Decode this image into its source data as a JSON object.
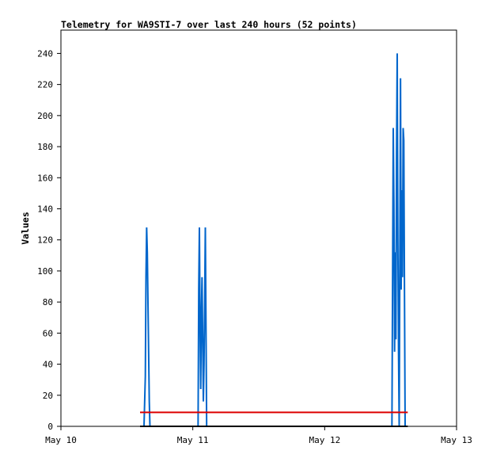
{
  "chart_data": {
    "type": "line",
    "title": "Telemetry for WA9STI-7 over last 240 hours (52 points)",
    "xlabel": "",
    "ylabel": "Values",
    "x_tick_labels": [
      "May 10",
      "May 11",
      "May 12",
      "May 13"
    ],
    "xlim_days": [
      10,
      13
    ],
    "ylim": [
      0,
      255
    ],
    "y_ticks": [
      0,
      20,
      40,
      60,
      80,
      100,
      120,
      140,
      160,
      180,
      200,
      220,
      240
    ],
    "grid": false,
    "legend": "none",
    "series": [
      {
        "color": "#0066cc",
        "x_days": [
          10.63,
          10.64,
          10.645,
          10.65,
          10.655,
          10.66,
          10.665,
          10.67,
          10.675,
          10.68,
          10.685,
          10.69,
          11.04,
          11.045,
          11.05,
          11.055,
          11.06,
          11.065,
          11.07,
          11.075,
          11.08,
          11.085,
          11.09,
          11.095,
          11.1,
          11.105,
          11.11,
          11.115,
          11.12,
          12.51,
          12.515,
          12.52,
          12.525,
          12.53,
          12.535,
          12.54,
          12.545,
          12.55,
          12.555,
          12.56,
          12.565,
          12.57,
          12.575,
          12.58,
          12.585,
          12.59,
          12.595,
          12.6,
          12.605,
          12.61,
          12.615,
          12.62
        ],
        "y": [
          0,
          32,
          96,
          128,
          112,
          80,
          48,
          16,
          0,
          0,
          0,
          0,
          0,
          88,
          128,
          64,
          24,
          72,
          96,
          56,
          16,
          40,
          80,
          128,
          64,
          0,
          0,
          0,
          0,
          0,
          96,
          192,
          144,
          48,
          112,
          56,
          176,
          240,
          120,
          48,
          0,
          112,
          224,
          88,
          152,
          96,
          192,
          184,
          88,
          0,
          0,
          0
        ]
      },
      {
        "color": "#dd0000",
        "x_days": [
          10.6,
          12.63
        ],
        "y": [
          9,
          9
        ]
      },
      {
        "color": "#000000",
        "x_days": [
          10.6,
          12.63
        ],
        "y": [
          0,
          0
        ]
      }
    ]
  }
}
